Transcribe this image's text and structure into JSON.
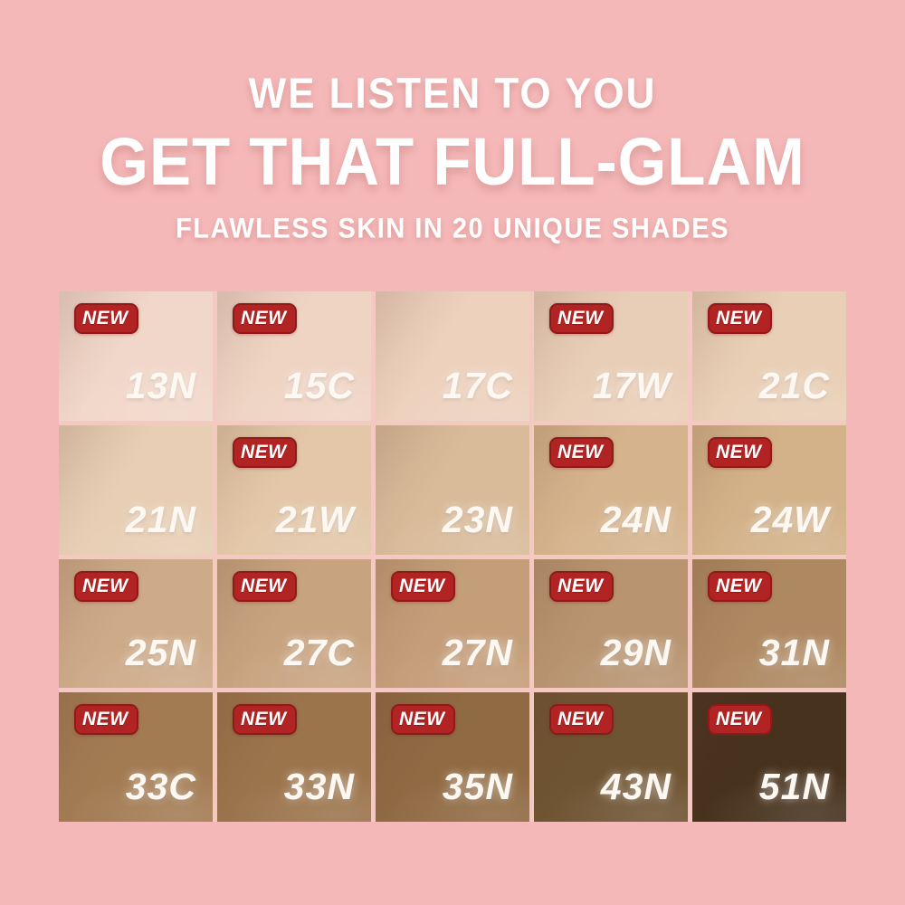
{
  "page": {
    "background_color": "#f5b8b8",
    "text_color": "#ffffff"
  },
  "header": {
    "line1": "WE LISTEN TO YOU",
    "line2": "GET THAT FULL-GLAM",
    "line3": "FLAWLESS SKIN IN 20 UNIQUE SHADES"
  },
  "badge": {
    "label": "NEW",
    "bg_color": "#b22424",
    "border_color": "#8f1a1a",
    "text_color": "#ffffff"
  },
  "shade_grid": {
    "columns": 5,
    "rows": 4,
    "shades": [
      {
        "code": "13N",
        "color": "#f1d7c9",
        "new": true
      },
      {
        "code": "15C",
        "color": "#efd4c4",
        "new": true
      },
      {
        "code": "17C",
        "color": "#edd1bd",
        "new": false
      },
      {
        "code": "17W",
        "color": "#e9ceb7",
        "new": true
      },
      {
        "code": "21C",
        "color": "#e9cfb6",
        "new": true
      },
      {
        "code": "21N",
        "color": "#e7ceb4",
        "new": false
      },
      {
        "code": "21W",
        "color": "#e3c7a8",
        "new": true
      },
      {
        "code": "23N",
        "color": "#d9bb9a",
        "new": false
      },
      {
        "code": "24N",
        "color": "#d5b38c",
        "new": true
      },
      {
        "code": "24W",
        "color": "#d3b289",
        "new": true
      },
      {
        "code": "25N",
        "color": "#cdaa88",
        "new": true
      },
      {
        "code": "27C",
        "color": "#c8a380",
        "new": true
      },
      {
        "code": "27N",
        "color": "#c49d79",
        "new": true
      },
      {
        "code": "29N",
        "color": "#b89470",
        "new": true
      },
      {
        "code": "31N",
        "color": "#ae8861",
        "new": true
      },
      {
        "code": "33C",
        "color": "#a37b53",
        "new": true
      },
      {
        "code": "33N",
        "color": "#9b744c",
        "new": true
      },
      {
        "code": "35N",
        "color": "#906a43",
        "new": true
      },
      {
        "code": "43N",
        "color": "#6f5433",
        "new": true
      },
      {
        "code": "51N",
        "color": "#47321e",
        "new": true
      }
    ]
  }
}
